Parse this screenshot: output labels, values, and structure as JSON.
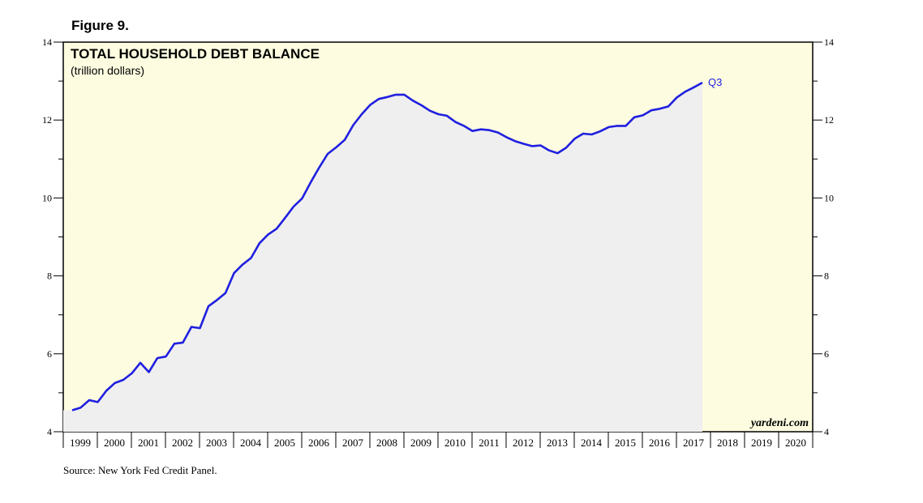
{
  "figure_label": "Figure 9.",
  "source": "Source: New York Fed Credit Panel.",
  "watermark": "yardeni.com",
  "colors": {
    "line": "#1f1fe0",
    "plot_bg": "#fdfce0",
    "fill": "#efefef",
    "axis": "#000000"
  },
  "chart_data": {
    "type": "area",
    "title": "TOTAL HOUSEHOLD DEBT BALANCE",
    "subtitle": "(trillion dollars)",
    "xlabel": "",
    "ylabel": "",
    "ylim": [
      4,
      14
    ],
    "y_ticks": [
      4,
      6,
      8,
      10,
      12,
      14
    ],
    "xlim": [
      1999,
      2021
    ],
    "x_tick_labels": [
      "1999",
      "2000",
      "2001",
      "2002",
      "2003",
      "2004",
      "2005",
      "2006",
      "2007",
      "2008",
      "2009",
      "2010",
      "2011",
      "2012",
      "2013",
      "2014",
      "2015",
      "2016",
      "2017",
      "2018",
      "2019",
      "2020"
    ],
    "end_annotation": "Q3",
    "grid": false,
    "series": [
      {
        "name": "Total household debt",
        "x": [
          1999.0,
          1999.25,
          1999.5,
          1999.75,
          2000.0,
          2000.25,
          2000.5,
          2000.75,
          2001.0,
          2001.25,
          2001.5,
          2001.75,
          2002.0,
          2002.25,
          2002.5,
          2002.75,
          2003.0,
          2003.25,
          2003.5,
          2003.75,
          2004.0,
          2004.25,
          2004.5,
          2004.75,
          2005.0,
          2005.25,
          2005.5,
          2005.75,
          2006.0,
          2006.25,
          2006.5,
          2006.75,
          2007.0,
          2007.25,
          2007.5,
          2007.75,
          2008.0,
          2008.25,
          2008.5,
          2008.75,
          2009.0,
          2009.25,
          2009.5,
          2009.75,
          2010.0,
          2010.25,
          2010.5,
          2010.75,
          2011.0,
          2011.25,
          2011.5,
          2011.75,
          2012.0,
          2012.25,
          2012.5,
          2012.75,
          2013.0,
          2013.25,
          2013.5,
          2013.75,
          2014.0,
          2014.25,
          2014.5,
          2014.75,
          2015.0,
          2015.25,
          2015.5,
          2015.75,
          2016.0,
          2016.25,
          2016.5,
          2016.75,
          2017.0,
          2017.25,
          2017.5
        ],
        "values": [
          4.55,
          4.62,
          4.81,
          4.76,
          5.05,
          5.25,
          5.33,
          5.5,
          5.77,
          5.53,
          5.89,
          5.93,
          6.26,
          6.29,
          6.69,
          6.66,
          7.22,
          7.38,
          7.56,
          8.07,
          8.29,
          8.46,
          8.84,
          9.06,
          9.21,
          9.49,
          9.78,
          9.99,
          10.4,
          10.78,
          11.13,
          11.3,
          11.49,
          11.87,
          12.15,
          12.39,
          12.54,
          12.59,
          12.65,
          12.65,
          12.5,
          12.38,
          12.24,
          12.15,
          12.11,
          11.95,
          11.85,
          11.72,
          11.76,
          11.74,
          11.68,
          11.56,
          11.46,
          11.39,
          11.33,
          11.35,
          11.22,
          11.15,
          11.29,
          11.52,
          11.65,
          11.63,
          11.71,
          11.82,
          11.85,
          11.85,
          12.07,
          12.12,
          12.25,
          12.29,
          12.35,
          12.58,
          12.73,
          12.84,
          12.96
        ]
      }
    ]
  }
}
